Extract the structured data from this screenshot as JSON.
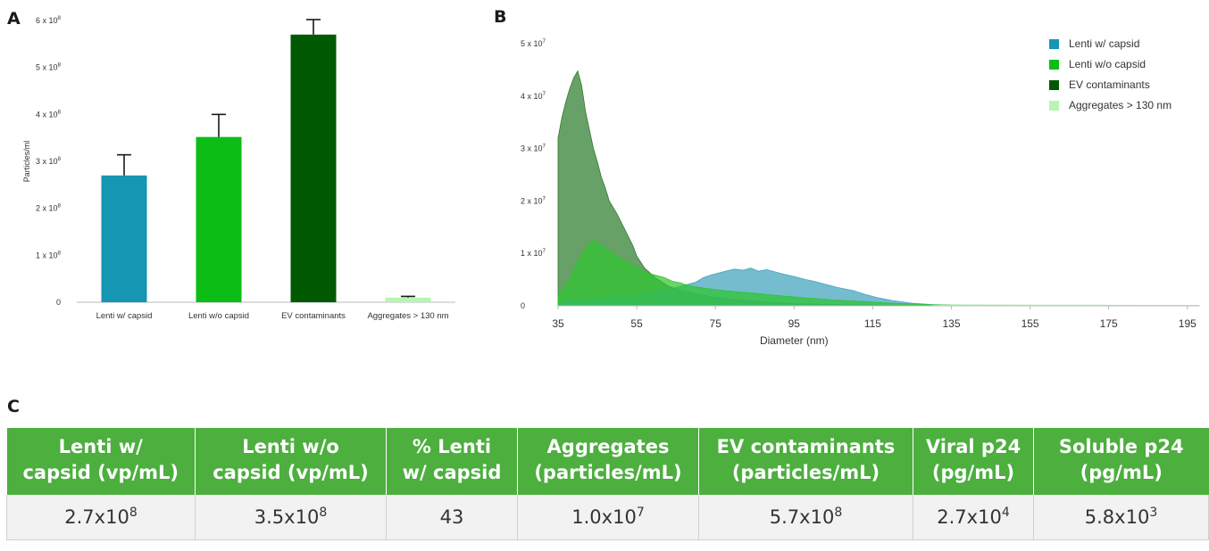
{
  "panels": {
    "a": "A",
    "b": "B",
    "c": "C"
  },
  "chart_data": [
    {
      "type": "bar",
      "panel": "A",
      "ylabel": "Particles/ml",
      "ylim": [
        0,
        600000000
      ],
      "yticks": [
        {
          "value": 0,
          "mant": "0",
          "exp": ""
        },
        {
          "value": 100000000,
          "mant": "1 x 10",
          "exp": "8"
        },
        {
          "value": 200000000,
          "mant": "2 x 10",
          "exp": "8"
        },
        {
          "value": 300000000,
          "mant": "3 x 10",
          "exp": "8"
        },
        {
          "value": 400000000,
          "mant": "4 x 10",
          "exp": "8"
        },
        {
          "value": 500000000,
          "mant": "5 x 10",
          "exp": "8"
        },
        {
          "value": 600000000,
          "mant": "6 x 10",
          "exp": "8"
        }
      ],
      "categories": [
        "Lenti w/ capsid",
        "Lenti w/o capsid",
        "EV contaminants",
        "Aggregates > 130 nm"
      ],
      "values": [
        270000000,
        352000000,
        570000000,
        10000000
      ],
      "errors": [
        44000000,
        48000000,
        32000000,
        2500000
      ],
      "colors": [
        "#1596b3",
        "#0cbd16",
        "#015a01",
        "#b6f5b4"
      ],
      "grid": false
    },
    {
      "type": "area",
      "panel": "B",
      "xlabel": "Diameter (nm)",
      "xlim": [
        35,
        198
      ],
      "xticks": [
        35,
        55,
        75,
        95,
        115,
        135,
        155,
        175,
        195
      ],
      "ylim": [
        0,
        50000000
      ],
      "yticks": [
        {
          "value": 0,
          "mant": "0",
          "exp": ""
        },
        {
          "value": 10000000,
          "mant": "1 x 10",
          "exp": "7"
        },
        {
          "value": 20000000,
          "mant": "2 x 10",
          "exp": "7"
        },
        {
          "value": 30000000,
          "mant": "3 x 10",
          "exp": "7"
        },
        {
          "value": 40000000,
          "mant": "4 x 10",
          "exp": "7"
        },
        {
          "value": 50000000,
          "mant": "5 x 10",
          "exp": "7"
        }
      ],
      "legend_position": "top-right",
      "grid": false,
      "series": [
        {
          "name": "EV contaminants",
          "color": "#2e7d2e",
          "opacity": 0.72,
          "x": [
            35,
            36,
            37,
            38,
            39,
            40,
            41,
            42,
            43,
            44,
            45,
            46,
            47,
            48,
            50,
            52,
            54,
            55,
            57,
            60,
            63,
            66,
            70,
            75,
            80,
            85,
            90,
            95,
            100,
            110,
            120,
            135,
            150,
            198
          ],
          "y": [
            32000000,
            36000000,
            39000000,
            41500000,
            43500000,
            44800000,
            42000000,
            37000000,
            33500000,
            30000000,
            27500000,
            24500000,
            22500000,
            20000000,
            17500000,
            14500000,
            11500000,
            9500000,
            7200000,
            5200000,
            3800000,
            3000000,
            2300000,
            1600000,
            1200000,
            900000,
            600000,
            400000,
            300000,
            200000,
            100000,
            50000,
            20000,
            0
          ]
        },
        {
          "name": "Lenti w/ capsid",
          "color": "#45a6be",
          "opacity": 0.75,
          "x": [
            35,
            40,
            45,
            50,
            55,
            60,
            65,
            70,
            72,
            74,
            76,
            78,
            80,
            82,
            84,
            86,
            88,
            90,
            92,
            95,
            98,
            100,
            103,
            106,
            110,
            113,
            116,
            120,
            125,
            130,
            135,
            140,
            150,
            160,
            198
          ],
          "y": [
            800000,
            1200000,
            1500000,
            1800000,
            2200000,
            2800000,
            3500000,
            4500000,
            5400000,
            5900000,
            6300000,
            6700000,
            7000000,
            6800000,
            7200000,
            6600000,
            6900000,
            6500000,
            6100000,
            5600000,
            5000000,
            4700000,
            4100000,
            3500000,
            2900000,
            2200000,
            1600000,
            1000000,
            500000,
            250000,
            120000,
            60000,
            20000,
            5000,
            0
          ]
        },
        {
          "name": "Lenti w/o capsid",
          "color": "#2fc52f",
          "opacity": 0.72,
          "x": [
            35,
            38,
            40,
            42,
            44,
            46,
            48,
            50,
            52,
            54,
            56,
            58,
            60,
            62,
            64,
            66,
            68,
            70,
            73,
            76,
            80,
            85,
            90,
            95,
            100,
            105,
            110,
            115,
            120,
            125,
            130,
            140,
            160,
            198
          ],
          "y": [
            2000000,
            5000000,
            8500000,
            11000000,
            12500000,
            11500000,
            10500000,
            9500000,
            8600000,
            7800000,
            6800000,
            6200000,
            5800000,
            5400000,
            4700000,
            4400000,
            3900000,
            3600000,
            3300000,
            3000000,
            2700000,
            2400000,
            2000000,
            1700000,
            1400000,
            1100000,
            900000,
            700000,
            500000,
            350000,
            200000,
            150000,
            100000,
            80000
          ]
        },
        {
          "name": "Aggregates > 130 nm",
          "color": "#b6f5b4",
          "opacity": 0.9,
          "x": [
            130,
            135,
            140,
            150,
            160,
            170,
            180,
            190,
            198
          ],
          "y": [
            60000,
            150000,
            170000,
            150000,
            140000,
            130000,
            120000,
            110000,
            100000
          ]
        }
      ],
      "legend": [
        {
          "name": "Lenti w/ capsid",
          "color": "#1596b3"
        },
        {
          "name": "Lenti w/o capsid",
          "color": "#0cbd16"
        },
        {
          "name": "EV contaminants",
          "color": "#015a01"
        },
        {
          "name": "Aggregates > 130 nm",
          "color": "#b6f5b4"
        }
      ]
    }
  ],
  "table": {
    "headers": [
      [
        "Lenti w/",
        "capsid (vp/mL)"
      ],
      [
        "Lenti w/o",
        "capsid (vp/mL)"
      ],
      [
        "% Lenti",
        "w/ capsid"
      ],
      [
        "Aggregates",
        "(particles/mL)"
      ],
      [
        "EV contaminants",
        "(particles/mL)"
      ],
      [
        "Viral p24",
        "(pg/mL)"
      ],
      [
        "Soluble p24",
        "(pg/mL)"
      ]
    ],
    "row": [
      {
        "mant": "2.7x10",
        "exp": "8"
      },
      {
        "mant": "3.5x10",
        "exp": "8"
      },
      {
        "mant": "43",
        "exp": ""
      },
      {
        "mant": "1.0x10",
        "exp": "7"
      },
      {
        "mant": "5.7x10",
        "exp": "8"
      },
      {
        "mant": "2.7x10",
        "exp": "4"
      },
      {
        "mant": "5.8x10",
        "exp": "3"
      }
    ]
  }
}
